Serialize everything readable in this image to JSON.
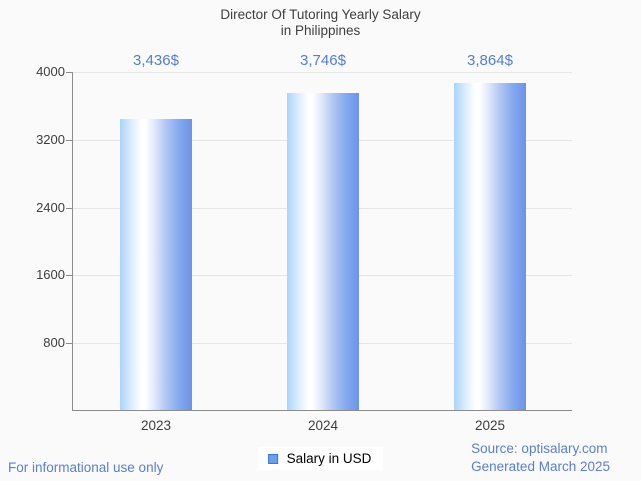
{
  "title": {
    "line1": "Director Of Tutoring Yearly Salary",
    "line2": "in Philippines"
  },
  "chart_data": {
    "type": "bar",
    "title": "Director Of Tutoring Yearly Salary in Philippines",
    "categories": [
      "2023",
      "2024",
      "2025"
    ],
    "series": [
      {
        "name": "Salary in USD",
        "values": [
          3436,
          3746,
          3864
        ]
      }
    ],
    "value_labels": [
      "3,436$",
      "3,746$",
      "3,864$"
    ],
    "ylim": [
      0,
      4000
    ],
    "yticks": [
      800,
      1600,
      2400,
      3200,
      4000
    ],
    "xlabel": "",
    "ylabel": "",
    "grid": "horizontal",
    "legend_position": "bottom-center"
  },
  "legend": {
    "label": "Salary in USD"
  },
  "footer": {
    "left": "For informational use only",
    "source": "Source: optisalary.com",
    "generated": "Generated March 2025"
  },
  "colors": {
    "background": "#fafafa",
    "title_text": "#3e3e3e",
    "axis_line": "#8c8c8c",
    "gridline": "#e5e5e5",
    "value_label": "#537dd8",
    "footer_text": "#5b7fd0",
    "bar_gradient_left": "#aad4fc",
    "bar_gradient_mid": "#ffffff",
    "bar_gradient_right": "#6b93e7",
    "legend_swatch_fill": "#6d9eeb",
    "legend_swatch_border": "#3c78d8"
  }
}
